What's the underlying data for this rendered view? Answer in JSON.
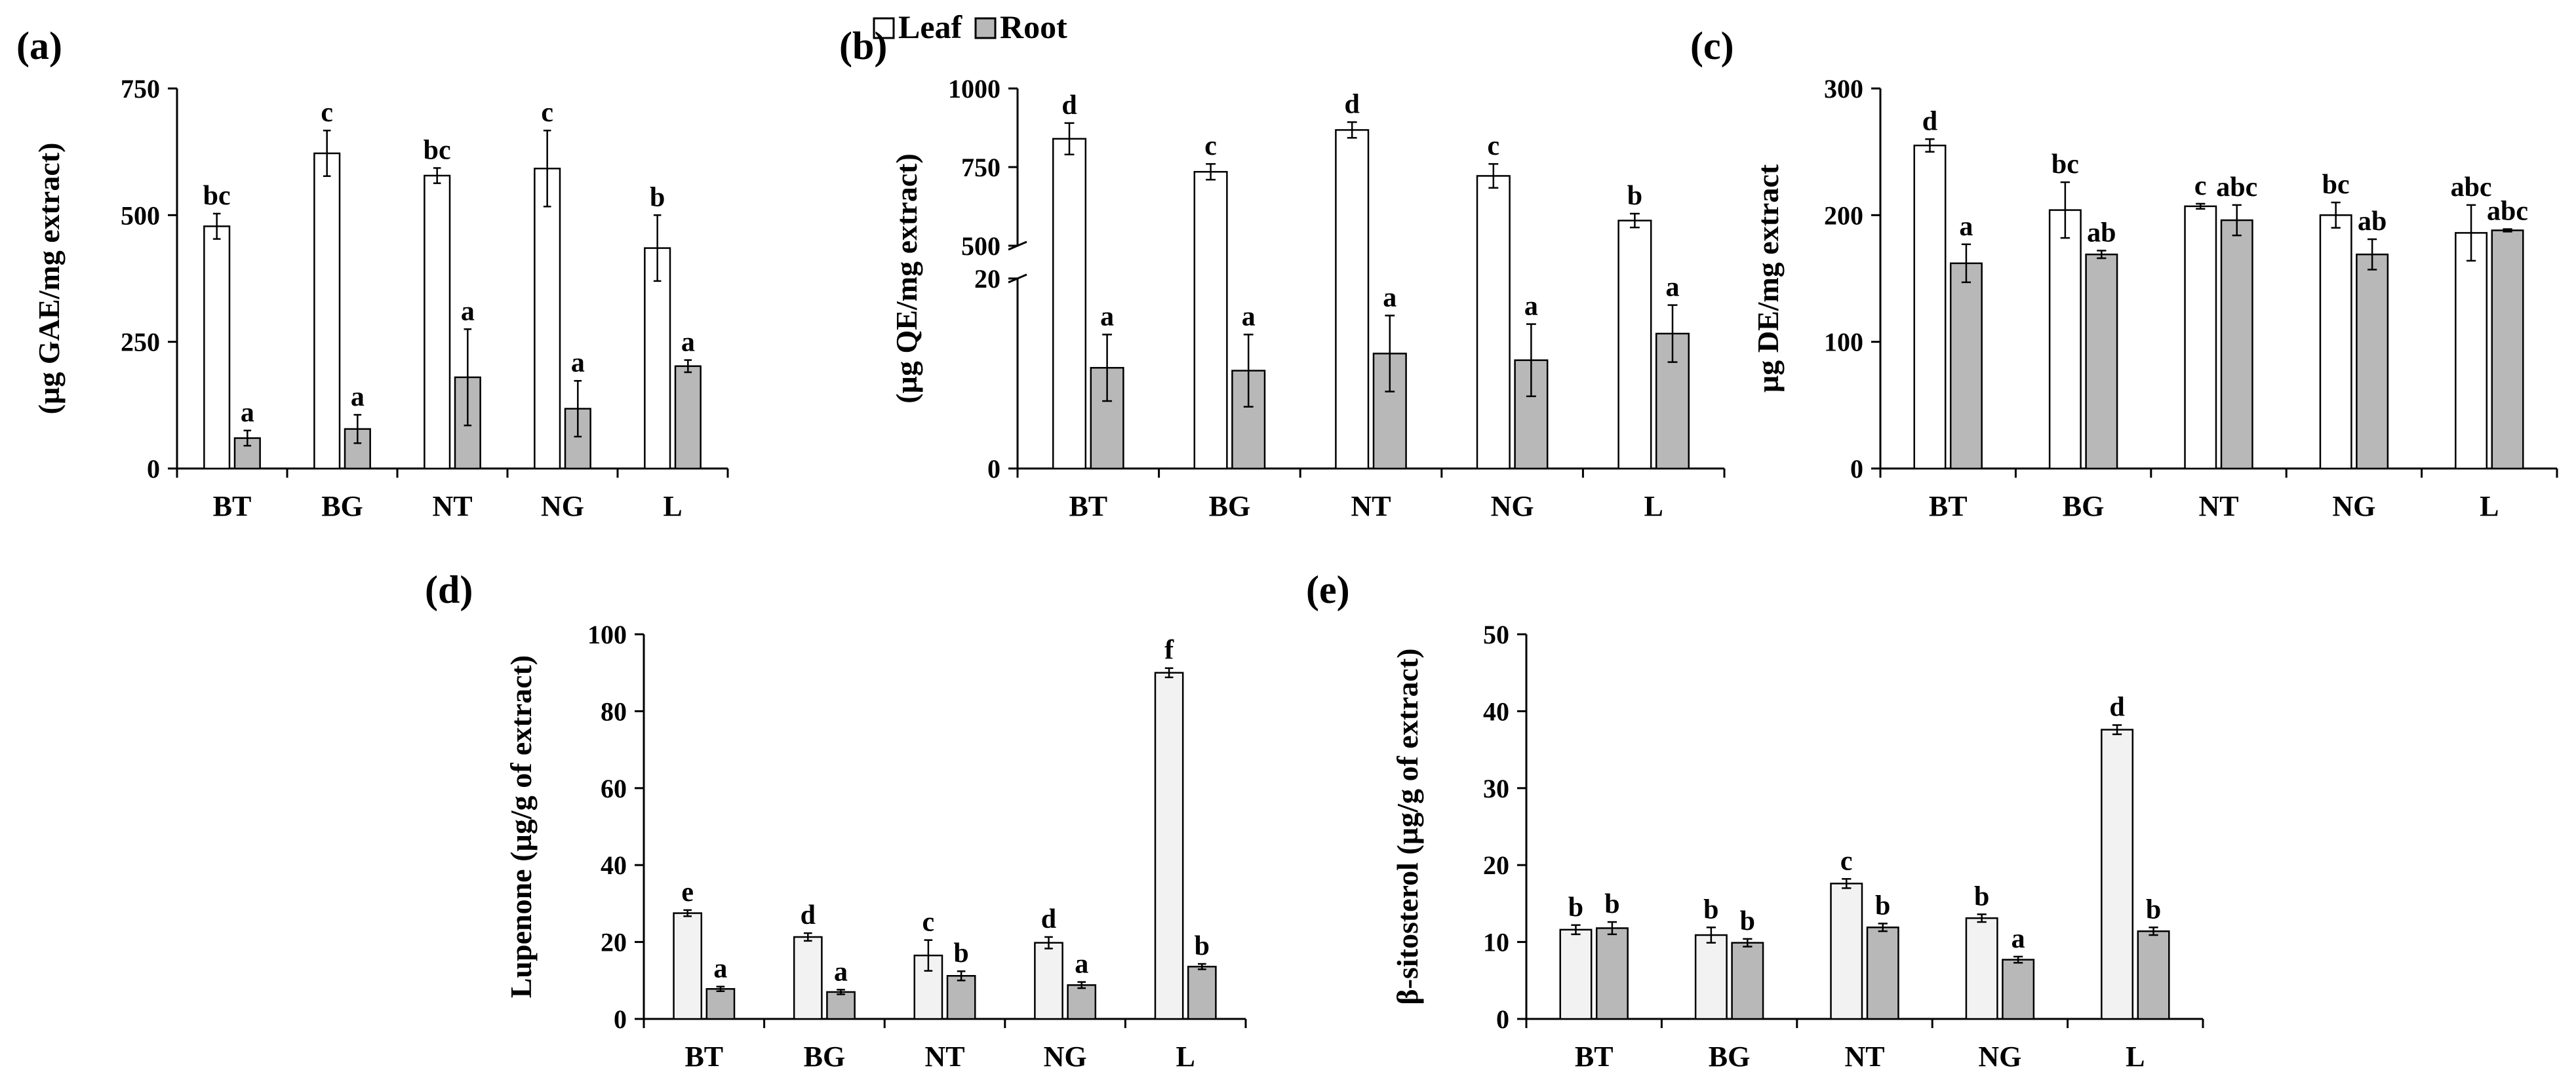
{
  "legend": {
    "items": [
      {
        "name": "Leaf",
        "color": "#ffffff"
      },
      {
        "name": "Root",
        "color": "#b8b8b8"
      }
    ]
  },
  "chart_data": [
    {
      "id": "a",
      "panel_label": "(a)",
      "type": "bar",
      "ylabel": "(µg GAE/mg extract)",
      "categories": [
        "BT",
        "BG",
        "NT",
        "NG",
        "L"
      ],
      "yticks": [
        0,
        250,
        500,
        750
      ],
      "ylim": [
        0,
        750
      ],
      "leaf_color": "#ffffff",
      "series": [
        {
          "name": "Leaf",
          "values": [
            478,
            622,
            578,
            592,
            435
          ],
          "errors": [
            25,
            45,
            15,
            75,
            65
          ],
          "letters": [
            "bc",
            "c",
            "bc",
            "c",
            "b"
          ]
        },
        {
          "name": "Root",
          "values": [
            60,
            78,
            180,
            118,
            202
          ],
          "errors": [
            15,
            28,
            95,
            55,
            12
          ],
          "letters": [
            "a",
            "a",
            "a",
            "a",
            "a"
          ]
        }
      ]
    },
    {
      "id": "b",
      "panel_label": "(b)",
      "type": "bar",
      "ylabel": "(µg QE/mg extract)",
      "categories": [
        "BT",
        "BG",
        "NT",
        "NG",
        "L"
      ],
      "yticks_lower": [
        0,
        20
      ],
      "yticks_upper": [
        500,
        750,
        1000
      ],
      "ylim_lower": [
        0,
        20
      ],
      "ylim_upper": [
        500,
        1000
      ],
      "axis_break": true,
      "leaf_color": "#ffffff",
      "series": [
        {
          "name": "Leaf",
          "values": [
            840,
            735,
            868,
            722,
            580
          ],
          "errors": [
            50,
            25,
            25,
            38,
            22
          ],
          "letters": [
            "d",
            "c",
            "d",
            "c",
            "b"
          ]
        },
        {
          "name": "Root",
          "values": [
            10.6,
            10.3,
            12.1,
            11.4,
            14.2
          ],
          "errors": [
            3.5,
            3.8,
            4.0,
            3.8,
            3.0
          ],
          "letters": [
            "a",
            "a",
            "a",
            "a",
            "a"
          ]
        }
      ]
    },
    {
      "id": "c",
      "panel_label": "(c)",
      "type": "bar",
      "ylabel": "µg DE/mg extract",
      "categories": [
        "BT",
        "BG",
        "NT",
        "NG",
        "L"
      ],
      "yticks": [
        0,
        100,
        200,
        300
      ],
      "ylim": [
        0,
        300
      ],
      "leaf_color": "#ffffff",
      "series": [
        {
          "name": "Leaf",
          "values": [
            255,
            204,
            207,
            200,
            186
          ],
          "errors": [
            5,
            22,
            2,
            10,
            22
          ],
          "letters": [
            "d",
            "bc",
            "c",
            "bc",
            "abc"
          ]
        },
        {
          "name": "Root",
          "values": [
            162,
            169,
            196,
            169,
            188
          ],
          "errors": [
            15,
            3,
            12,
            12,
            1
          ],
          "letters": [
            "a",
            "ab",
            "abc",
            "ab",
            "abc"
          ]
        }
      ]
    },
    {
      "id": "d",
      "panel_label": "(d)",
      "type": "bar",
      "ylabel": "Lupenone  (µg/g of extract)",
      "categories": [
        "BT",
        "BG",
        "NT",
        "NG",
        "L"
      ],
      "yticks": [
        0,
        20,
        40,
        60,
        80,
        100
      ],
      "ylim": [
        0,
        100
      ],
      "leaf_color": "#f2f2f2",
      "series": [
        {
          "name": "Leaf",
          "values": [
            27.5,
            21.3,
            16.5,
            19.8,
            90.0
          ],
          "errors": [
            0.8,
            1.0,
            4.0,
            1.5,
            1.2
          ],
          "letters": [
            "e",
            "d",
            "c",
            "d",
            "f"
          ]
        },
        {
          "name": "Root",
          "values": [
            7.8,
            7.0,
            11.2,
            8.8,
            13.6
          ],
          "errors": [
            0.6,
            0.6,
            1.2,
            0.8,
            0.7
          ],
          "letters": [
            "a",
            "a",
            "b",
            "a",
            "b"
          ]
        }
      ]
    },
    {
      "id": "e",
      "panel_label": "(e)",
      "type": "bar",
      "ylabel": "β-sitosterol  (µg/g of extract)",
      "categories": [
        "BT",
        "BG",
        "NT",
        "NG",
        "L"
      ],
      "yticks": [
        0,
        10,
        20,
        30,
        40,
        50
      ],
      "ylim": [
        0,
        50
      ],
      "leaf_color": "#f2f2f2",
      "series": [
        {
          "name": "Leaf",
          "values": [
            11.6,
            10.9,
            17.6,
            13.1,
            37.6
          ],
          "errors": [
            0.6,
            1.0,
            0.6,
            0.5,
            0.6
          ],
          "letters": [
            "b",
            "b",
            "c",
            "b",
            "d"
          ]
        },
        {
          "name": "Root",
          "values": [
            11.8,
            9.9,
            11.9,
            7.7,
            11.4
          ],
          "errors": [
            0.8,
            0.5,
            0.5,
            0.4,
            0.5
          ],
          "letters": [
            "b",
            "b",
            "b",
            "a",
            "b"
          ]
        }
      ]
    }
  ]
}
